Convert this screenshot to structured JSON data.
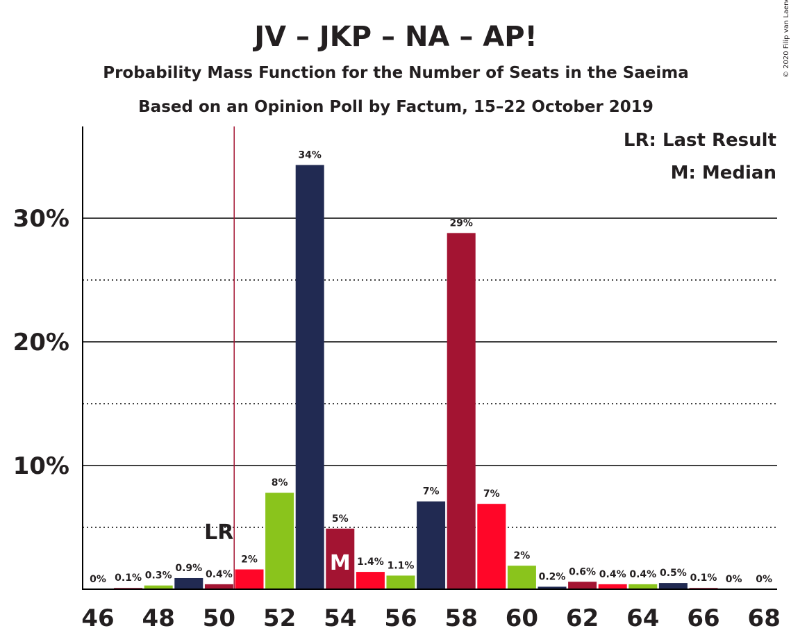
{
  "title": "JV – JKP – NA – AP!",
  "subtitle1": "Probability Mass Function for the Number of Seats in the Saeima",
  "subtitle2": "Based on an Opinion Poll by Factum, 15–22 October 2019",
  "copyright": "© 2020 Filip van Laenen",
  "legend": {
    "lr": "LR: Last Result",
    "median": "M: Median"
  },
  "markers": {
    "lr_label": "LR",
    "median_label": "M"
  },
  "chart_data": {
    "type": "bar",
    "x": [
      46,
      47,
      48,
      49,
      50,
      51,
      52,
      53,
      54,
      55,
      56,
      57,
      58,
      59,
      60,
      61,
      62,
      63,
      64,
      65,
      66,
      67,
      68
    ],
    "values": [
      0,
      0.1,
      0.3,
      0.9,
      0.4,
      1.6,
      7.8,
      34.3,
      4.9,
      1.4,
      1.1,
      7.1,
      28.8,
      6.9,
      1.9,
      0.2,
      0.6,
      0.4,
      0.4,
      0.5,
      0.1,
      0,
      0
    ],
    "labels": [
      "0%",
      "0.1%",
      "0.3%",
      "0.9%",
      "0.4%",
      "2%",
      "8%",
      "34%",
      "5%",
      "1.4%",
      "1.1%",
      "7%",
      "29%",
      "7%",
      "2%",
      "0.2%",
      "0.6%",
      "0.4%",
      "0.4%",
      "0.5%",
      "0.1%",
      "0%",
      "0%"
    ],
    "bar_colors": [
      "#212a52",
      "#a31432",
      "#8ac41c",
      "#212a52",
      "#a31432",
      "#ff0628",
      "#8ac41c",
      "#212a52",
      "#a31432",
      "#ff0628",
      "#8ac41c",
      "#212a52",
      "#a31432",
      "#ff0628",
      "#8ac41c",
      "#212a52",
      "#a31432",
      "#ff0628",
      "#8ac41c",
      "#212a52",
      "#a31432",
      "#ff0628",
      "#8ac41c"
    ],
    "x_tick_labels": [
      "46",
      "48",
      "50",
      "52",
      "54",
      "56",
      "58",
      "60",
      "62",
      "64",
      "66",
      "68"
    ],
    "y_tick_labels": [
      "10%",
      "20%",
      "30%"
    ],
    "ylim": [
      0,
      37.5
    ],
    "major_gridlines": [
      10,
      20,
      30
    ],
    "minor_gridlines": [
      5,
      15,
      25
    ],
    "last_result": 51,
    "median": 54,
    "legend_position": "top-right"
  }
}
